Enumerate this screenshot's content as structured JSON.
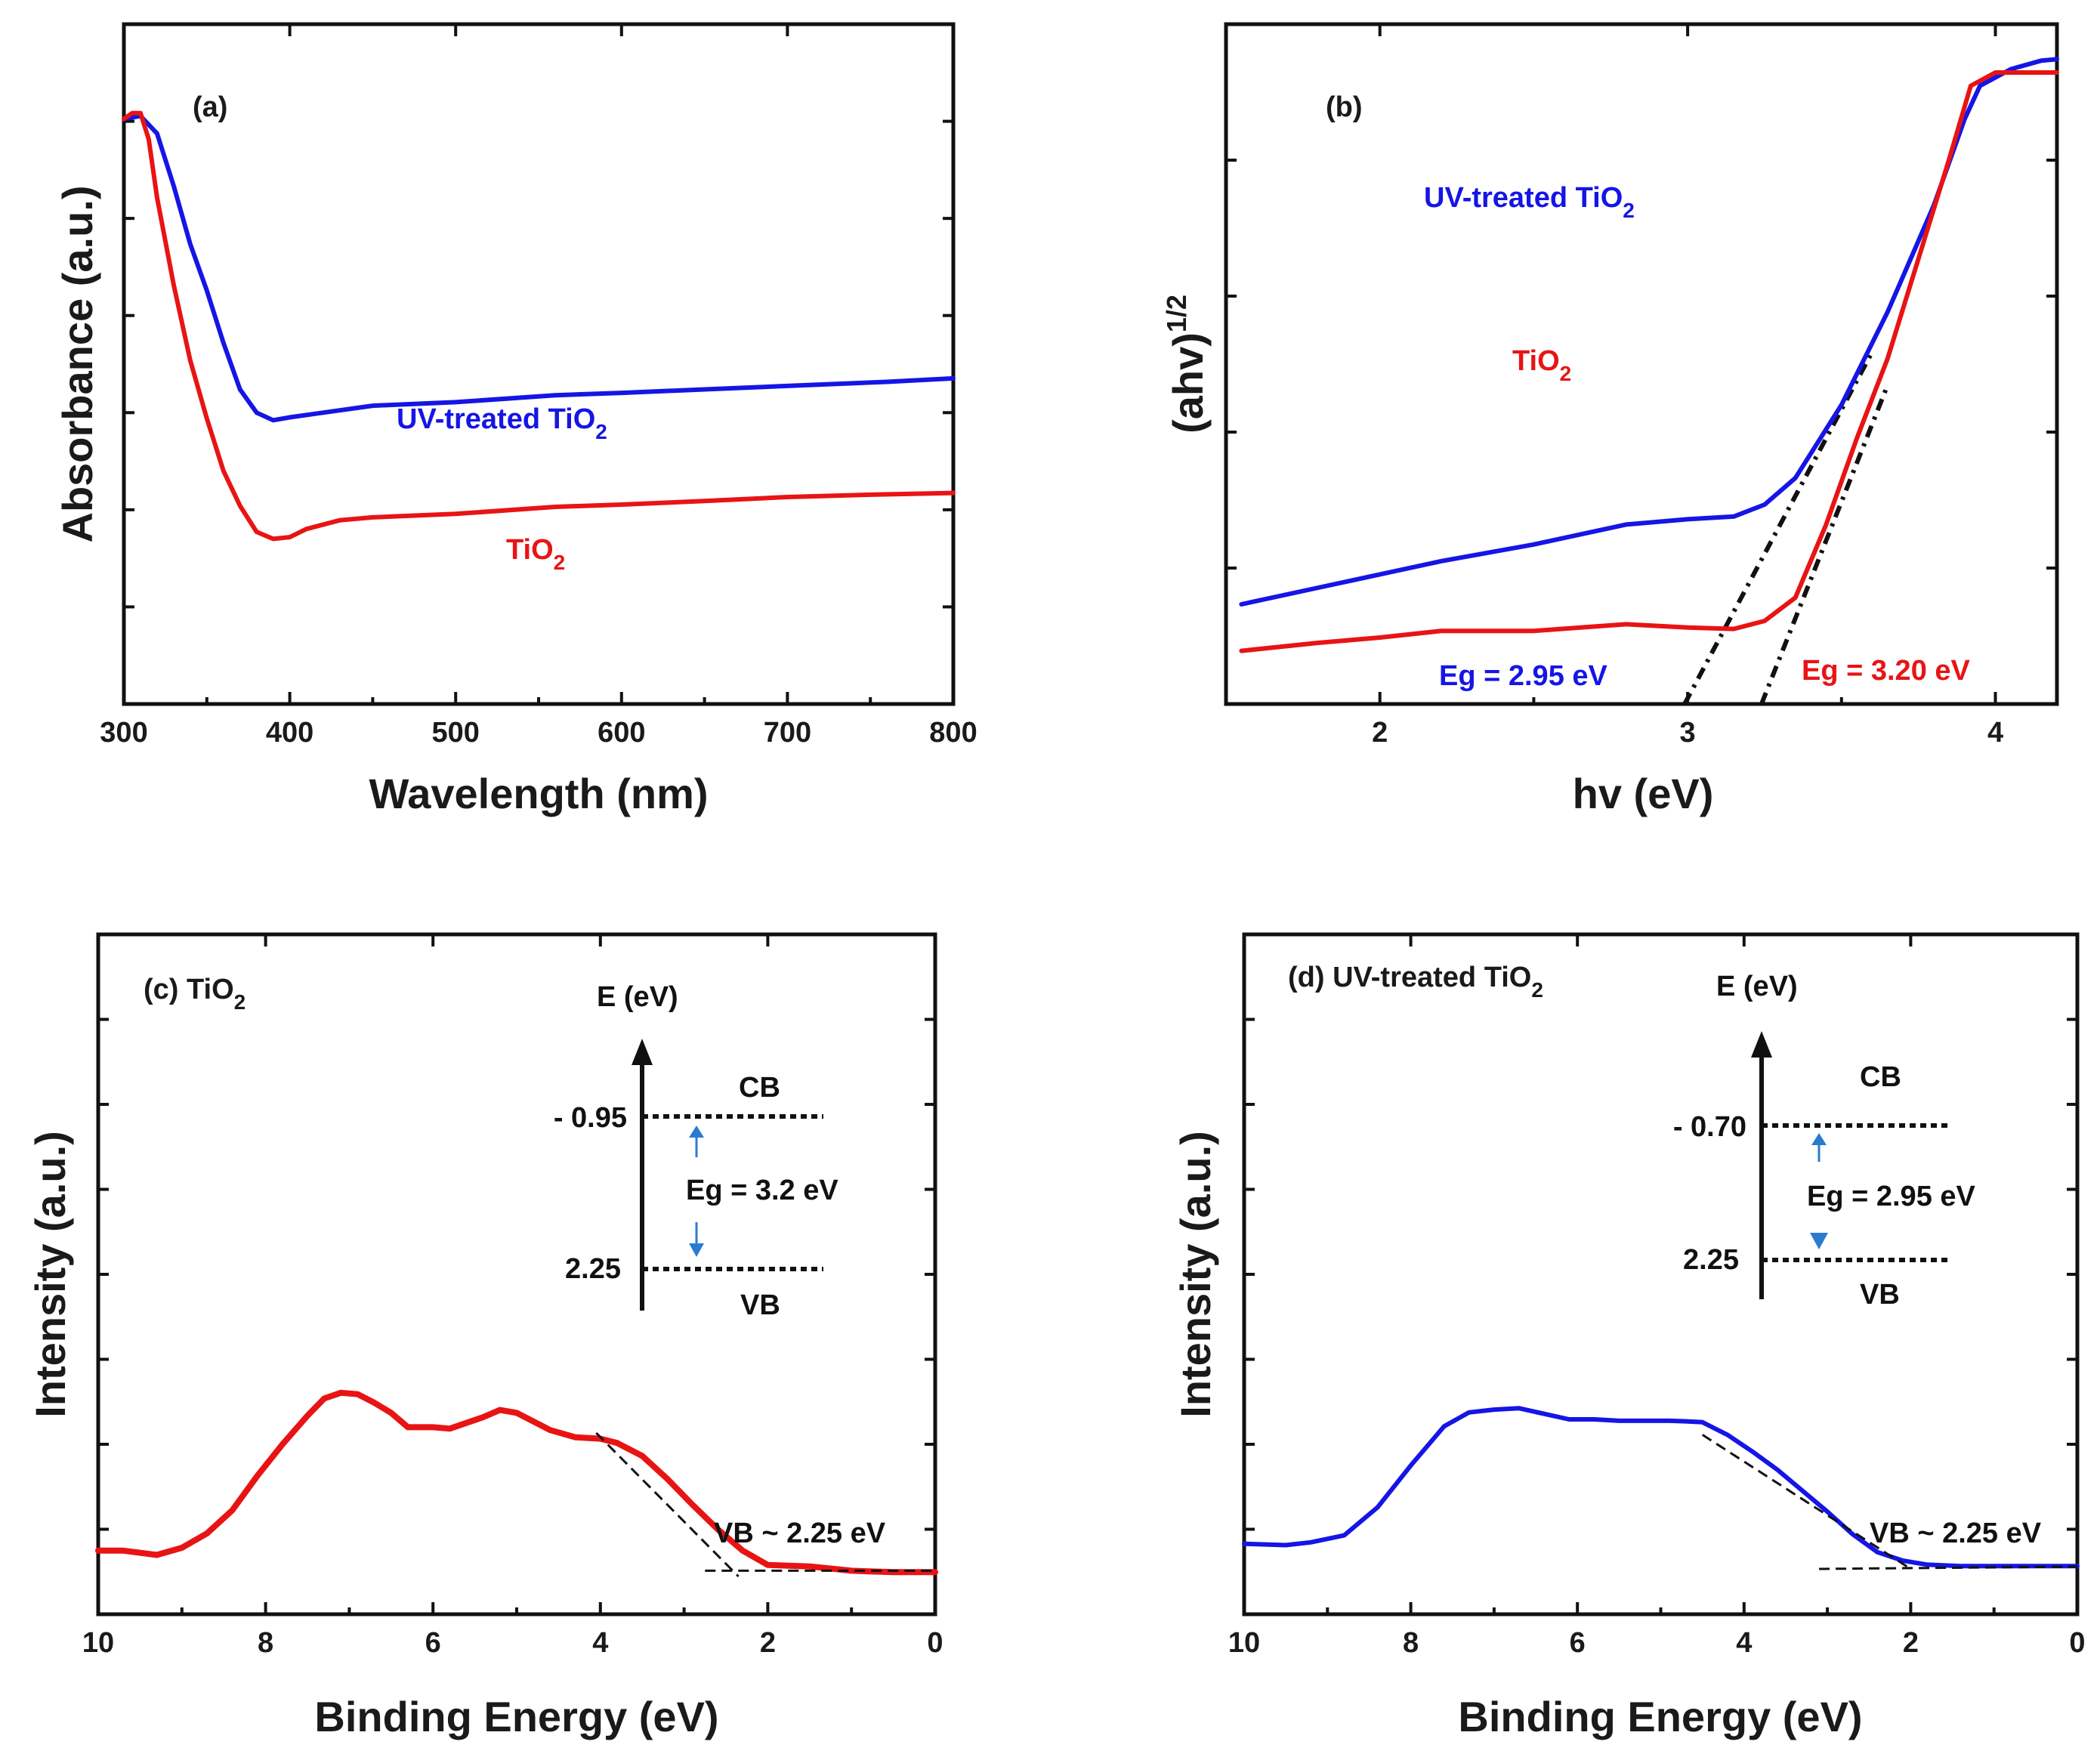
{
  "colors": {
    "blue": "#1515e6",
    "red": "#e81414",
    "black": "#111111",
    "arrow_blue": "#2a7bd0"
  },
  "chart_data": [
    {
      "id": "a",
      "type": "line",
      "panel_label": "(a)",
      "xlabel": "Wavelength (nm)",
      "ylabel": "Absorbance (a.u.)",
      "xlim": [
        300,
        800
      ],
      "ylim": [
        0,
        100
      ],
      "xticks": [
        300,
        400,
        500,
        600,
        700,
        800
      ],
      "xticklabels": [
        "300",
        "400",
        "500",
        "600",
        "700",
        "800"
      ],
      "yticklabels_visible": false,
      "series": [
        {
          "name": "UV-treated TiO2",
          "label_main": "UV-treated TiO",
          "label_sub": "2",
          "color": "#1515e6",
          "x": [
            300,
            310,
            320,
            330,
            340,
            350,
            360,
            370,
            380,
            390,
            400,
            420,
            450,
            500,
            560,
            600,
            650,
            700,
            760,
            800
          ],
          "y": [
            91.5,
            92,
            89,
            80,
            70,
            62,
            53,
            45,
            41,
            39.7,
            40.2,
            41,
            42.2,
            42.8,
            44,
            44.4,
            45,
            45.6,
            46.3,
            46.9
          ]
        },
        {
          "name": "TiO2",
          "label_main": "TiO",
          "label_sub": "2",
          "color": "#e81414",
          "x": [
            300,
            305,
            310,
            315,
            320,
            330,
            340,
            350,
            360,
            370,
            380,
            390,
            400,
            410,
            430,
            450,
            500,
            560,
            600,
            650,
            700,
            750,
            800
          ],
          "y": [
            91.5,
            92.5,
            92.5,
            88,
            78,
            63,
            50,
            40,
            31,
            25,
            20.5,
            19.3,
            19.6,
            21,
            22.5,
            23,
            23.6,
            24.8,
            25.2,
            25.8,
            26.5,
            26.9,
            27.2
          ]
        }
      ]
    },
    {
      "id": "b",
      "type": "line",
      "panel_label": "(b)",
      "xlabel": "hv (eV)",
      "ylabel_main": "(ahv)",
      "ylabel_sup": "1/2",
      "xlim": [
        1.5,
        4.2
      ],
      "ylim": [
        0,
        100
      ],
      "xticks": [
        2,
        3,
        4
      ],
      "xticklabels": [
        "2",
        "3",
        "4"
      ],
      "yticklabels_visible": false,
      "series": [
        {
          "name": "UV-treated TiO2",
          "label_main": "UV-treated TiO",
          "label_sub": "2",
          "color": "#1515e6",
          "x": [
            1.55,
            1.8,
            2.0,
            2.2,
            2.5,
            2.8,
            3.0,
            3.15,
            3.25,
            3.35,
            3.5,
            3.65,
            3.8,
            3.9,
            3.95,
            4.05,
            4.15,
            4.2
          ],
          "y": [
            15,
            17.5,
            19.5,
            21.5,
            24,
            27,
            27.8,
            28.2,
            30,
            34,
            45,
            59,
            75,
            88,
            93,
            95.5,
            96.8,
            97
          ]
        },
        {
          "name": "TiO2",
          "label_main": "TiO",
          "label_sub": "2",
          "color": "#e81414",
          "x": [
            1.55,
            1.8,
            2.0,
            2.2,
            2.5,
            2.8,
            3.0,
            3.15,
            3.25,
            3.35,
            3.45,
            3.55,
            3.65,
            3.75,
            3.85,
            3.92,
            4.0,
            4.1,
            4.2
          ],
          "y": [
            8,
            9.2,
            10,
            11,
            11,
            12,
            11.5,
            11.3,
            12.5,
            16,
            27,
            40,
            52,
            67,
            82,
            93,
            95,
            95,
            95
          ]
        }
      ],
      "fit_lines": [
        {
          "x": [
            2.99,
            3.6
          ],
          "y": [
            0,
            53
          ],
          "color": "#111111"
        },
        {
          "x": [
            3.24,
            3.65
          ],
          "y": [
            0,
            48
          ],
          "color": "#111111"
        }
      ],
      "annotations": [
        {
          "text": "Eg = 2.95 eV",
          "color": "#1515e6"
        },
        {
          "text": "Eg = 3.20 eV",
          "color": "#e81414"
        }
      ]
    },
    {
      "id": "c",
      "type": "line",
      "panel_label_main": "(c) TiO",
      "panel_label_sub": "2",
      "xlabel": "Binding Energy (eV)",
      "ylabel": "Intensity (a.u.)",
      "xlim": [
        10,
        0
      ],
      "ylim": [
        0,
        100
      ],
      "xticks": [
        10,
        8,
        6,
        4,
        2,
        0
      ],
      "xticklabels": [
        "10",
        "8",
        "6",
        "4",
        "2",
        "0"
      ],
      "yticklabels_visible": false,
      "series": [
        {
          "name": "TiO2",
          "color": "#e81414",
          "x": [
            10,
            9.7,
            9.3,
            9.0,
            8.7,
            8.4,
            8.1,
            7.8,
            7.5,
            7.3,
            7.1,
            6.9,
            6.7,
            6.5,
            6.3,
            6.0,
            5.8,
            5.6,
            5.4,
            5.2,
            5.0,
            4.8,
            4.6,
            4.3,
            4.0,
            3.8,
            3.5,
            3.2,
            2.9,
            2.6,
            2.3,
            2.0,
            1.5,
            1.0,
            0.5,
            0
          ],
          "y": [
            9,
            9,
            7.5,
            10,
            15,
            23,
            35,
            46,
            56,
            62,
            64,
            63.5,
            60.5,
            57,
            52,
            52,
            51.5,
            53.5,
            55.5,
            58,
            57,
            54,
            51,
            48.5,
            48,
            46.5,
            42,
            34,
            25,
            16.5,
            9,
            4,
            3.5,
            2,
            1.5,
            1.5
          ]
        }
      ],
      "fit_lines": [
        {
          "x": [
            4.05,
            2.35
          ],
          "y": [
            50,
            0
          ],
          "color": "#111111"
        },
        {
          "x": [
            2.75,
            0.0
          ],
          "y": [
            2,
            2
          ],
          "color": "#111111"
        }
      ],
      "inset": {
        "axis_label": "E (eV)",
        "cb_label": "CB",
        "vb_label": "VB",
        "cb_value": "- 0.95",
        "vb_value": "2.25",
        "gap_label": "Eg = 3.2 eV"
      },
      "annotation": "VB ~ 2.25 eV"
    },
    {
      "id": "d",
      "type": "line",
      "panel_label_main": "(d) UV-treated TiO",
      "panel_label_sub": "2",
      "xlabel": "Binding Energy (eV)",
      "ylabel": "Intensity (a.u.)",
      "xlim": [
        10,
        0
      ],
      "ylim": [
        0,
        100
      ],
      "xticks": [
        10,
        8,
        6,
        4,
        2,
        0
      ],
      "xticklabels": [
        "10",
        "8",
        "6",
        "4",
        "2",
        "0"
      ],
      "yticklabels_visible": false,
      "series": [
        {
          "name": "UV-treated TiO2",
          "color": "#1515e6",
          "x": [
            10,
            9.5,
            9.2,
            8.8,
            8.4,
            8.0,
            7.6,
            7.3,
            7.0,
            6.7,
            6.4,
            6.1,
            5.8,
            5.5,
            5.2,
            4.9,
            4.7,
            4.5,
            4.2,
            3.9,
            3.6,
            3.3,
            3.0,
            2.7,
            2.4,
            2.1,
            1.8,
            1.4,
            1.0,
            0.5,
            0
          ],
          "y": [
            9,
            8.5,
            9.5,
            12,
            22,
            37,
            51,
            56,
            57,
            57.5,
            55.5,
            53.5,
            53.5,
            53,
            53,
            53,
            52.8,
            52.5,
            48,
            42,
            35.5,
            28,
            20.5,
            12.5,
            6,
            3,
            1.5,
            1,
            1,
            1,
            1
          ]
        }
      ],
      "fit_lines": [
        {
          "x": [
            4.5,
            2.0
          ],
          "y": [
            48,
            0
          ],
          "color": "#111111"
        },
        {
          "x": [
            3.1,
            0.0
          ],
          "y": [
            0,
            0.8
          ],
          "color": "#111111"
        }
      ],
      "inset": {
        "axis_label": "E (eV)",
        "cb_label": "CB",
        "vb_label": "VB",
        "cb_value": "- 0.70",
        "vb_value": "2.25",
        "gap_label": "Eg = 2.95 eV"
      },
      "annotation": "VB ~ 2.25 eV"
    }
  ]
}
